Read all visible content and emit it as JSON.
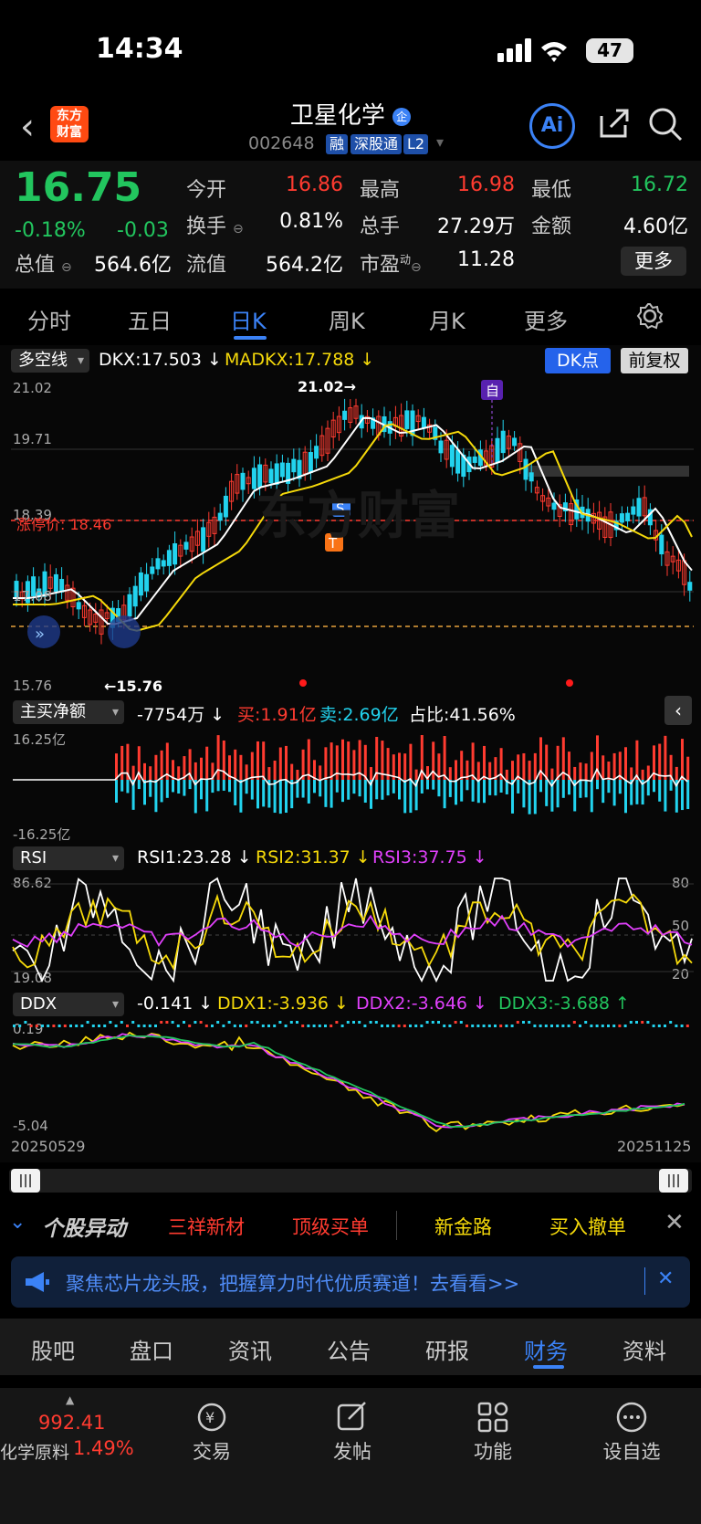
{
  "status": {
    "time": "14:34",
    "battery": "47"
  },
  "header": {
    "logo": "东方\n财富",
    "name": "卫星化学",
    "code": "002648",
    "tags": [
      "融",
      "深股通",
      "L2"
    ],
    "ai": "Ai"
  },
  "quote": {
    "price": "16.75",
    "pct": "-0.18%",
    "change": "-0.03",
    "rows": [
      [
        {
          "l": "今开",
          "v": "16.86",
          "c": "red"
        },
        {
          "l": "最高",
          "v": "16.98",
          "c": "red"
        },
        {
          "l": "最低",
          "v": "16.72",
          "c": "green"
        }
      ],
      [
        {
          "l": "换手",
          "v": "0.81%",
          "c": "white"
        },
        {
          "l": "总手",
          "v": "27.29万",
          "c": "white"
        },
        {
          "l": "金额",
          "v": "4.60亿",
          "c": "white"
        }
      ],
      [
        {
          "l": "总值",
          "v": "564.6亿",
          "c": "white"
        },
        {
          "l": "流值",
          "v": "564.2亿",
          "c": "white"
        },
        {
          "l": "市盈",
          "v": "11.28",
          "c": "white"
        }
      ]
    ],
    "more": "更多"
  },
  "period_tabs": [
    "分时",
    "五日",
    "日K",
    "周K",
    "月K",
    "更多"
  ],
  "active_period": "日K",
  "kline": {
    "indicator_select": "多空线",
    "dkx": "DKX:17.503",
    "madkx": "MADKX:17.788",
    "dk_point": "DK点",
    "adjust": "前复权",
    "y_labels": [
      "21.02",
      "19.71",
      "18.39",
      "17.08",
      "15.76"
    ],
    "limit_label": "涨停价: 18.46",
    "high_mark": "21.02",
    "low_mark": "15.76",
    "watermark": "东方财富"
  },
  "netbuy": {
    "select": "主买净额",
    "value": "-7754万",
    "buy": "买:1.91亿",
    "sell": "卖:2.69亿",
    "ratio": "占比:41.56%",
    "top": "16.25亿",
    "bottom": "-16.25亿"
  },
  "rsi": {
    "select": "RSI",
    "rsi1": "RSI1:23.28",
    "rsi2": "RSI2:31.37",
    "rsi3": "RSI3:37.75",
    "top": "86.62",
    "bottom": "19.08",
    "right": [
      "80",
      "50",
      "20"
    ]
  },
  "ddx": {
    "select": "DDX",
    "value": "-0.141",
    "ddx1": "DDX1:-3.936",
    "ddx2": "DDX2:-3.646",
    "ddx3": "DDX3:-3.688",
    "top": "0.19",
    "bottom": "-5.04",
    "date_start": "20250529",
    "date_end": "20251125"
  },
  "news": {
    "title": "个股异动",
    "items": [
      {
        "text": "三祥新材",
        "c": "red"
      },
      {
        "text": "顶级买单",
        "c": "red"
      },
      {
        "text": "新金路",
        "c": "yellow"
      },
      {
        "text": "买入撤单",
        "c": "yellow"
      }
    ],
    "banner": "聚焦芯片龙头股，把握算力时代优质赛道！去看看>>"
  },
  "bottom_tabs": [
    "股吧",
    "盘口",
    "资讯",
    "公告",
    "研报",
    "财务",
    "资料"
  ],
  "active_bottom": "财务",
  "toolbar": {
    "index_value": "992.41",
    "index_name": "化学原料",
    "index_pct": "1.49%",
    "items": [
      "交易",
      "发帖",
      "功能",
      "设自选"
    ]
  }
}
